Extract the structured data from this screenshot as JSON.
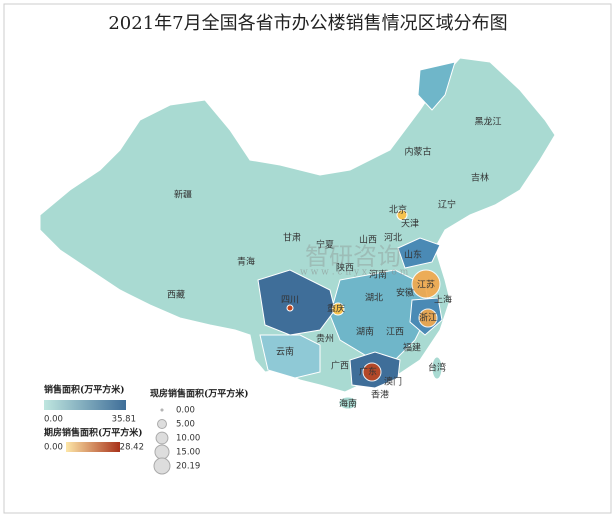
{
  "header": {
    "title": "2021年7月全国各省市办公楼销售情况区域分布图"
  },
  "watermark": {
    "brand": "智研咨询",
    "url": "w w w . c h y x x . c o m"
  },
  "regions": [
    "黑龙江",
    "吉林",
    "辽宁",
    "内蒙古",
    "北京",
    "天津",
    "河北",
    "山西",
    "山东",
    "河南",
    "江苏",
    "安徽",
    "上海",
    "湖北",
    "浙江",
    "四川",
    "重庆",
    "湖南",
    "江西",
    "福建",
    "贵州",
    "云南",
    "广西",
    "广东",
    "台湾",
    "澳门",
    "香港",
    "海南",
    "新疆",
    "西藏",
    "青海",
    "甘肃",
    "宁夏",
    "陕西"
  ],
  "legend_sales": {
    "title": "销售面积(万平方米)",
    "min": {
      "value": 0,
      "label": "0.00"
    },
    "max": 35.81
  },
  "legend_presale": {
    "title": "期房销售面积(万平方米)",
    "min": {
      "value": 0,
      "label": "0.00"
    },
    "max": 28.42
  },
  "legend_existing": {
    "title": "现房销售面积(万平方米)",
    "sizes": [
      {
        "value": 0,
        "label": "0.00"
      },
      {
        "value": 5,
        "label": "5.00"
      },
      {
        "value": 10,
        "label": "10.00"
      },
      {
        "value": 15,
        "label": "15.00"
      },
      20.19
    ]
  }
}
